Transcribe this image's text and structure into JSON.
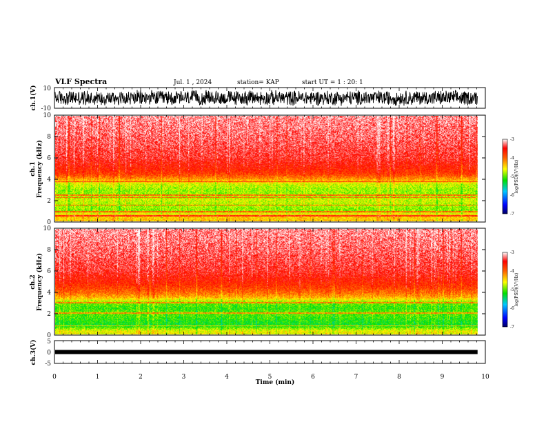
{
  "header": {
    "title": "VLF Spectra",
    "date": "Jul. 1 , 2024",
    "station": "station= KAP",
    "start": "start UT = 1 : 20: 1"
  },
  "chart_data": [
    {
      "id": "ch1_waveform",
      "type": "line",
      "ylabel": "ch.1(V)",
      "ylim": [
        -10,
        10
      ],
      "yticks": [
        "10",
        "-10"
      ],
      "xlim": [
        0,
        10
      ],
      "description": "dense noisy waveform filling roughly -8 V to +8 V over the full record"
    },
    {
      "id": "ch1_spectrogram",
      "type": "heatmap",
      "ylabel": "ch.1\nFrequency (kHz)",
      "ylabel_lines": [
        "ch.1",
        "Frequency (kHz)"
      ],
      "ylim": [
        0,
        10
      ],
      "yticks": [
        "0",
        "2",
        "4",
        "6",
        "8",
        "10"
      ],
      "xlim": [
        0,
        10
      ],
      "data_extent_min": 9.82,
      "colorbar": {
        "label": "log(PSD)(V²/Hz)",
        "range": [
          -7,
          -3
        ],
        "ticks": [
          "-3",
          "-4",
          "-5",
          "-6",
          "-7"
        ]
      },
      "band_profile_freq_khz": [
        0.5,
        1.0,
        1.5,
        2.0,
        2.5,
        3.0,
        3.5,
        4.0,
        4.5,
        5.0,
        6.0,
        8.0,
        10.0
      ],
      "band_profile_logpsd": [
        -4.4,
        -4.9,
        -4.8,
        -4.7,
        -4.85,
        -4.85,
        -4.7,
        -4.2,
        -3.8,
        -3.65,
        -3.45,
        -3.3,
        -3.2
      ],
      "lines_khz": [
        0.5,
        0.9,
        1.5,
        2.25,
        2.45,
        3.75
      ]
    },
    {
      "id": "ch2_spectrogram",
      "type": "heatmap",
      "ylabel": "ch.2\nFrequency (kHz)",
      "ylabel_lines": [
        "ch.2",
        "Frequency (kHz)"
      ],
      "ylim": [
        0,
        10
      ],
      "yticks": [
        "0",
        "2",
        "4",
        "6",
        "8",
        "10"
      ],
      "xlim": [
        0,
        10
      ],
      "data_extent_min": 9.82,
      "colorbar": {
        "label": "log(PSD)(V²/Hz)",
        "range": [
          -7,
          -3
        ],
        "ticks": [
          "-3",
          "-4",
          "-5",
          "-6",
          "-7"
        ]
      },
      "band_profile_freq_khz": [
        0.3,
        0.8,
        1.5,
        2.0,
        2.5,
        3.0,
        3.5,
        4.0,
        4.5,
        5.0,
        6.0,
        8.0,
        10.0
      ],
      "band_profile_logpsd": [
        -4.6,
        -5.25,
        -5.1,
        -5.0,
        -5.1,
        -4.95,
        -4.3,
        -4.0,
        -3.8,
        -3.65,
        -3.45,
        -3.3,
        -3.2
      ],
      "lines_khz": [
        0.8,
        2.0,
        3.0
      ]
    },
    {
      "id": "ch3_waveform",
      "type": "line",
      "ylabel": "ch.3(V)",
      "ylim": [
        -5,
        5
      ],
      "yticks": [
        "5",
        "0",
        "-5"
      ],
      "xlim": [
        0,
        10
      ],
      "xlabel": "Time (min)",
      "xticks": [
        "0",
        "1",
        "2",
        "3",
        "4",
        "5",
        "6",
        "7",
        "8",
        "9",
        "10"
      ],
      "description": "thin flat band centred near 0 V (about -0.6 to +0.6 V)"
    }
  ]
}
